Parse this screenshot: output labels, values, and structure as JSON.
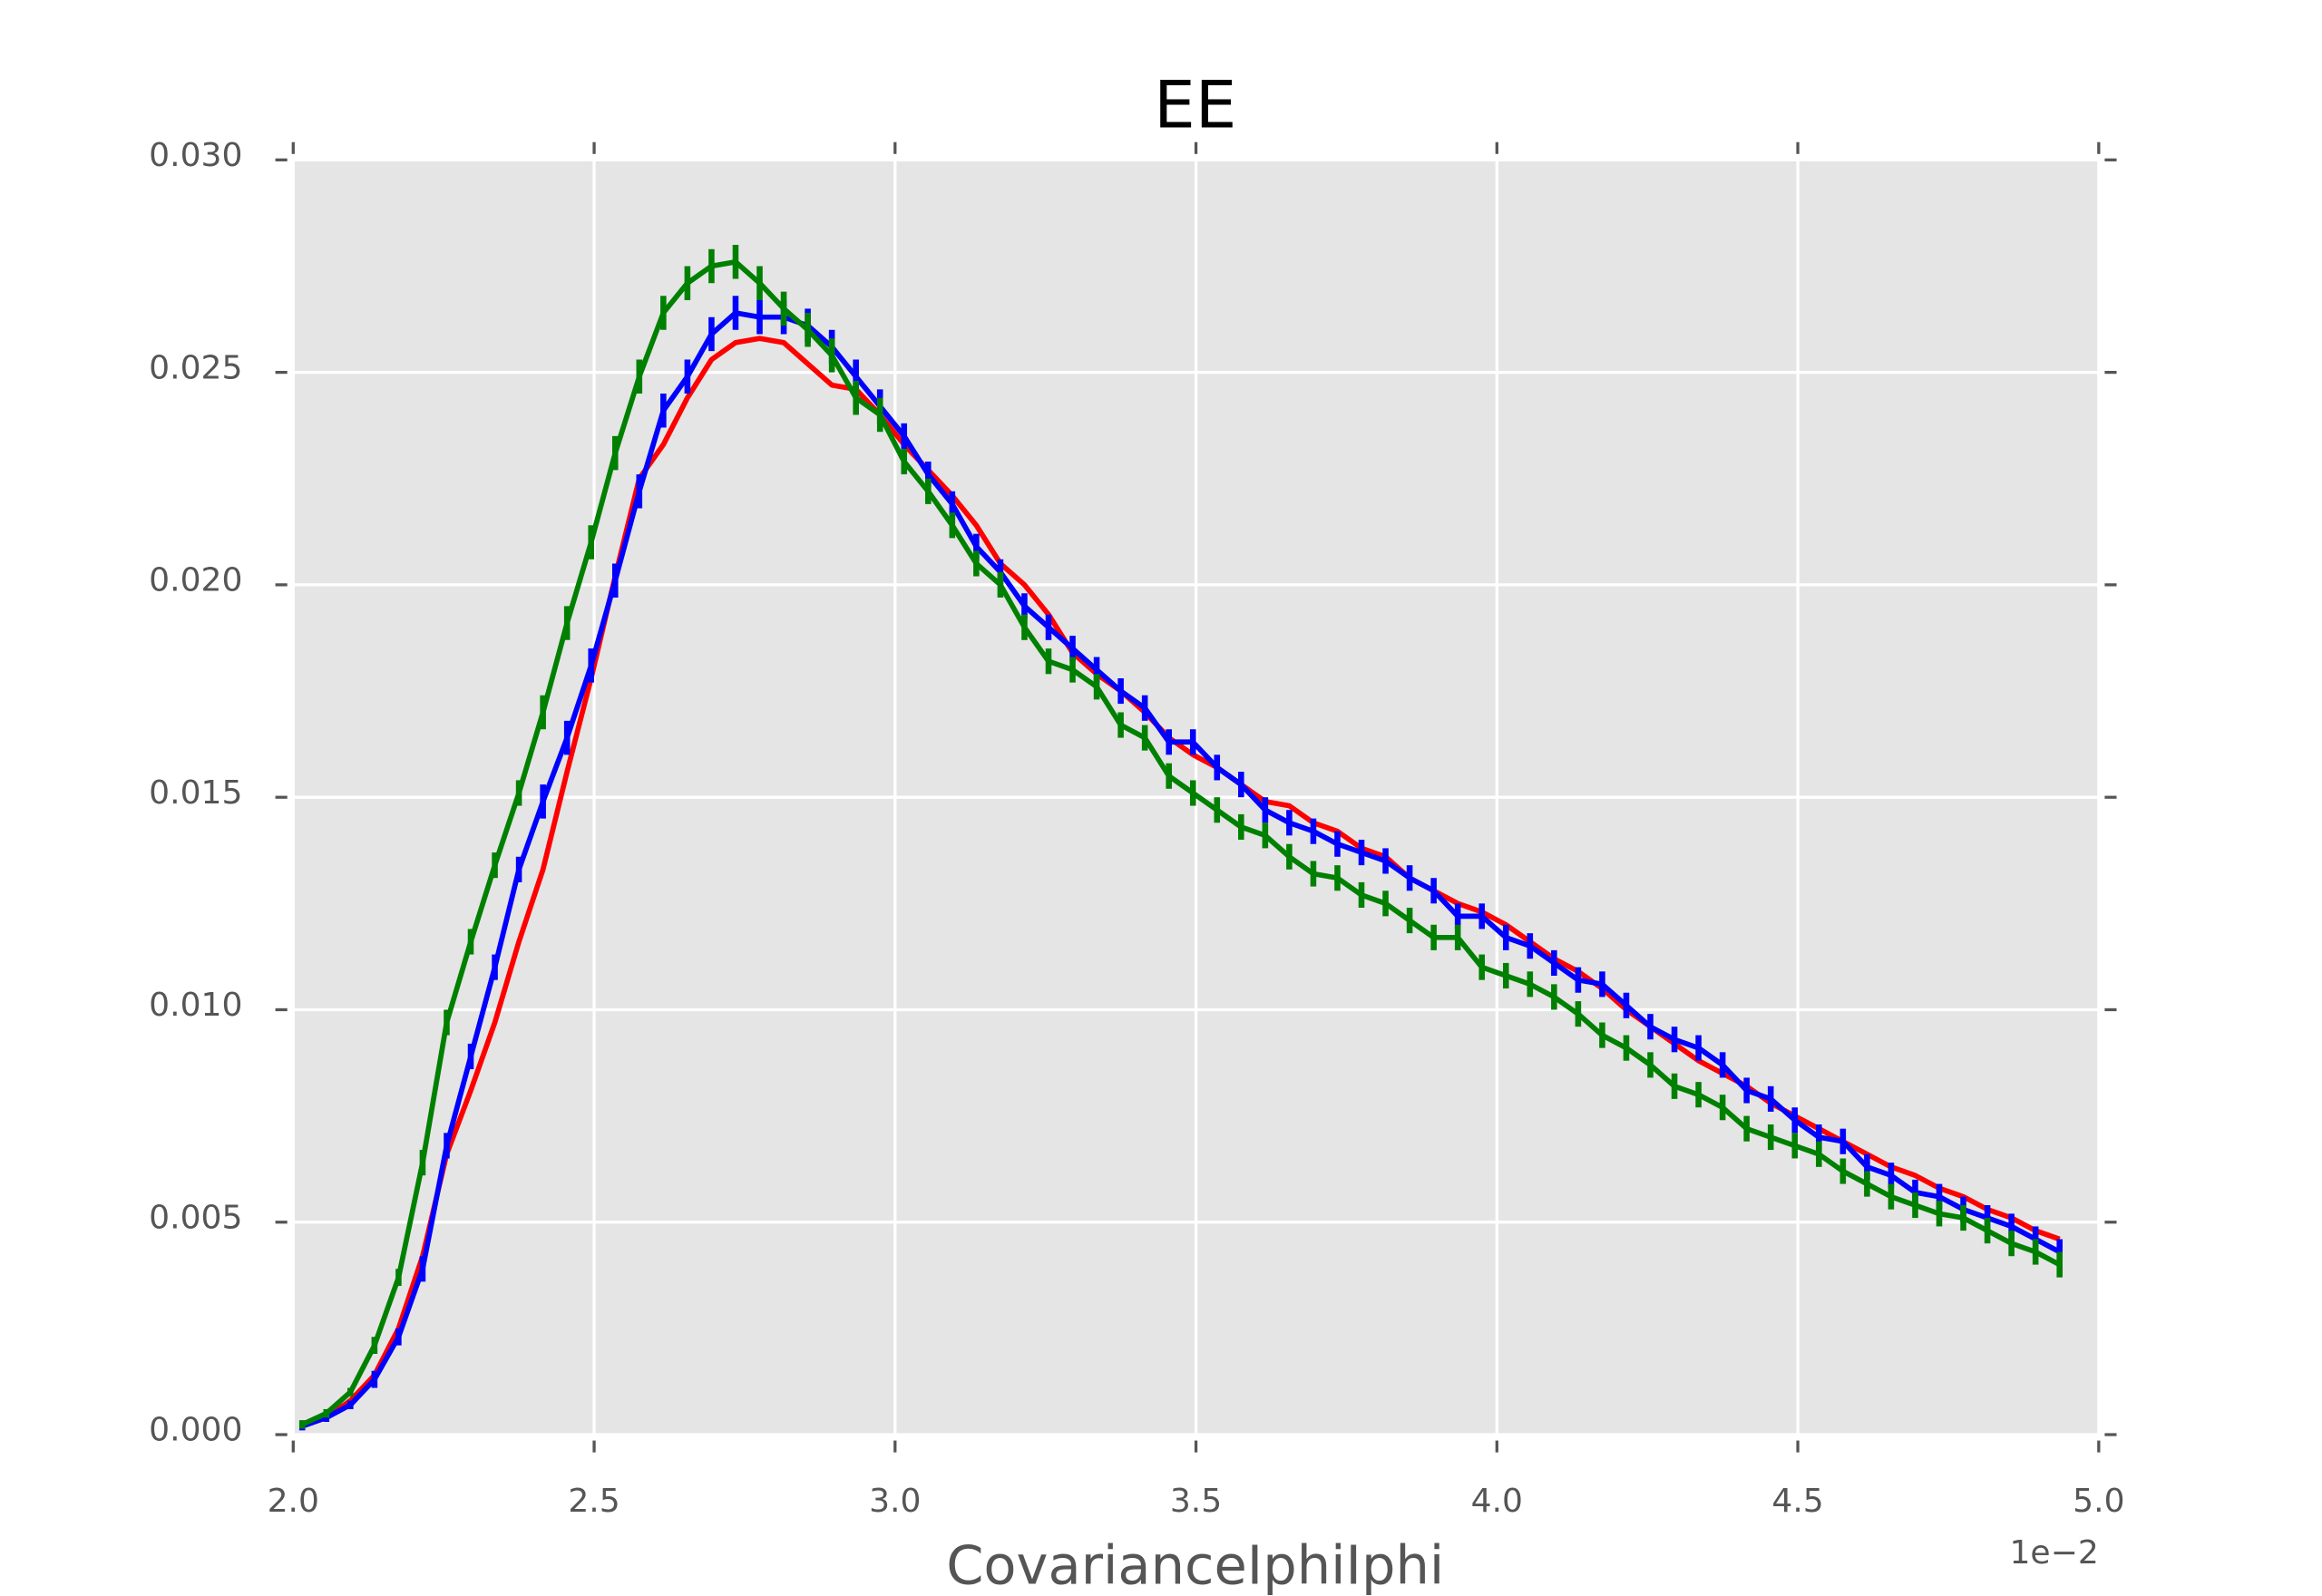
{
  "chart_data": {
    "type": "line",
    "title": "EE",
    "x_label": "CovarianceIphiIphi",
    "x_offset_label": "1e−2",
    "x": [
      2.015,
      2.055,
      2.095,
      2.135,
      2.175,
      2.215,
      2.255,
      2.295,
      2.335,
      2.375,
      2.415,
      2.455,
      2.495,
      2.535,
      2.575,
      2.615,
      2.655,
      2.695,
      2.735,
      2.775,
      2.815,
      2.855,
      2.895,
      2.935,
      2.975,
      3.015,
      3.055,
      3.095,
      3.135,
      3.175,
      3.215,
      3.255,
      3.295,
      3.335,
      3.375,
      3.415,
      3.455,
      3.495,
      3.535,
      3.575,
      3.615,
      3.655,
      3.695,
      3.735,
      3.775,
      3.815,
      3.855,
      3.895,
      3.935,
      3.975,
      4.015,
      4.055,
      4.095,
      4.135,
      4.175,
      4.215,
      4.255,
      4.295,
      4.335,
      4.375,
      4.415,
      4.455,
      4.495,
      4.535,
      4.575,
      4.615,
      4.655,
      4.695,
      4.735,
      4.775,
      4.815,
      4.855,
      4.895,
      4.935
    ],
    "series": [
      {
        "color": "#ff0000",
        "values": [
          0.0002,
          0.0004,
          0.0008,
          0.0014,
          0.0025,
          0.0042,
          0.0066,
          0.0081,
          0.0097,
          0.0116,
          0.0133,
          0.0156,
          0.0178,
          0.0202,
          0.0225,
          0.0233,
          0.0244,
          0.0253,
          0.0257,
          0.0258,
          0.0257,
          0.0252,
          0.0247,
          0.0246,
          0.024,
          0.0233,
          0.0227,
          0.0221,
          0.0214,
          0.0205,
          0.02,
          0.0193,
          0.0184,
          0.0179,
          0.0175,
          0.017,
          0.0164,
          0.016,
          0.0157,
          0.0153,
          0.0149,
          0.0148,
          0.0144,
          0.0142,
          0.0138,
          0.0136,
          0.0131,
          0.0128,
          0.0125,
          0.0123,
          0.012,
          0.0116,
          0.0112,
          0.0109,
          0.0105,
          0.01,
          0.0096,
          0.0092,
          0.0088,
          0.0085,
          0.0082,
          0.0078,
          0.0075,
          0.0072,
          0.0069,
          0.0066,
          0.0063,
          0.0061,
          0.0058,
          0.0056,
          0.0053,
          0.0051,
          0.0048,
          0.0046
        ]
      },
      {
        "color": "#0000ff",
        "values": [
          0.0002,
          0.0004,
          0.0007,
          0.0013,
          0.0023,
          0.0039,
          0.0068,
          0.0089,
          0.011,
          0.0133,
          0.0149,
          0.0164,
          0.0181,
          0.0201,
          0.0222,
          0.0241,
          0.0249,
          0.0259,
          0.0264,
          0.0263,
          0.0263,
          0.0261,
          0.0256,
          0.0249,
          0.0242,
          0.0235,
          0.0226,
          0.0219,
          0.0209,
          0.0203,
          0.0195,
          0.019,
          0.0185,
          0.018,
          0.0175,
          0.0171,
          0.0163,
          0.0163,
          0.0157,
          0.0153,
          0.0147,
          0.0144,
          0.0142,
          0.0139,
          0.0137,
          0.0135,
          0.0131,
          0.0128,
          0.0122,
          0.0122,
          0.0117,
          0.0115,
          0.0111,
          0.0107,
          0.0106,
          0.0101,
          0.0096,
          0.0093,
          0.0091,
          0.0087,
          0.0081,
          0.0079,
          0.0074,
          0.007,
          0.0069,
          0.0063,
          0.0061,
          0.0057,
          0.0056,
          0.0053,
          0.0051,
          0.0049,
          0.0046,
          0.0043
        ],
        "errors": [
          0.0001,
          0.0001,
          0.0001,
          0.0002,
          0.0002,
          0.0003,
          0.0003,
          0.0003,
          0.0003,
          0.0003,
          0.0004,
          0.0004,
          0.0004,
          0.0004,
          0.0004,
          0.0004,
          0.0004,
          0.0004,
          0.0004,
          0.0004,
          0.0004,
          0.0004,
          0.0004,
          0.0004,
          0.0004,
          0.0003,
          0.0003,
          0.0003,
          0.0003,
          0.0003,
          0.0003,
          0.0003,
          0.0003,
          0.0003,
          0.0003,
          0.0003,
          0.0003,
          0.0003,
          0.0003,
          0.0003,
          0.0003,
          0.0003,
          0.0003,
          0.0003,
          0.0003,
          0.0003,
          0.0003,
          0.0003,
          0.0003,
          0.0003,
          0.0003,
          0.0003,
          0.0003,
          0.0003,
          0.0003,
          0.0003,
          0.0003,
          0.0003,
          0.0003,
          0.0003,
          0.0003,
          0.0003,
          0.0003,
          0.0003,
          0.0003,
          0.0003,
          0.0003,
          0.0003,
          0.0003,
          0.0003,
          0.0003,
          0.0003,
          0.0003,
          0.0003
        ]
      },
      {
        "color": "#008000",
        "values": [
          0.00024,
          0.0005,
          0.001,
          0.0021,
          0.0037,
          0.0064,
          0.0097,
          0.0116,
          0.0134,
          0.0151,
          0.017,
          0.0191,
          0.021,
          0.0231,
          0.0249,
          0.0264,
          0.0271,
          0.0275,
          0.0276,
          0.0271,
          0.0265,
          0.026,
          0.0254,
          0.0244,
          0.024,
          0.0229,
          0.0222,
          0.0214,
          0.0205,
          0.02,
          0.019,
          0.0182,
          0.018,
          0.0176,
          0.0167,
          0.0164,
          0.0155,
          0.0151,
          0.0147,
          0.0143,
          0.0141,
          0.0136,
          0.0132,
          0.0131,
          0.0127,
          0.0125,
          0.0121,
          0.0117,
          0.0117,
          0.011,
          0.0108,
          0.0106,
          0.0103,
          0.0099,
          0.0094,
          0.0091,
          0.0087,
          0.0082,
          0.008,
          0.0077,
          0.0072,
          0.007,
          0.0068,
          0.0066,
          0.0062,
          0.0059,
          0.0056,
          0.0054,
          0.0052,
          0.0051,
          0.0048,
          0.0045,
          0.0043,
          0.004
        ],
        "errors": [
          0.0001,
          0.0001,
          0.0001,
          0.0002,
          0.0002,
          0.0003,
          0.0003,
          0.0003,
          0.0003,
          0.0003,
          0.0004,
          0.0004,
          0.0004,
          0.0004,
          0.0004,
          0.0004,
          0.0004,
          0.0004,
          0.0004,
          0.0004,
          0.0004,
          0.0004,
          0.0004,
          0.0004,
          0.0004,
          0.0003,
          0.0003,
          0.0003,
          0.0003,
          0.0003,
          0.0003,
          0.0003,
          0.0003,
          0.0003,
          0.0003,
          0.0003,
          0.0003,
          0.0003,
          0.0003,
          0.0003,
          0.0003,
          0.0003,
          0.0003,
          0.0003,
          0.0003,
          0.0003,
          0.0003,
          0.0003,
          0.0003,
          0.0003,
          0.0003,
          0.0003,
          0.0003,
          0.0003,
          0.0003,
          0.0003,
          0.0003,
          0.0003,
          0.0003,
          0.0003,
          0.0003,
          0.0003,
          0.0003,
          0.0003,
          0.0003,
          0.0003,
          0.0003,
          0.0003,
          0.0003,
          0.0003,
          0.0003,
          0.0003,
          0.0003,
          0.0003
        ]
      }
    ],
    "xlim": [
      2.0,
      5.0
    ],
    "xticks": [
      {
        "value": 2.0,
        "label": "2.0"
      },
      {
        "value": 2.5,
        "label": "2.5"
      },
      {
        "value": 3.0,
        "label": "3.0"
      },
      {
        "value": 3.5,
        "label": "3.5"
      },
      {
        "value": 4.0,
        "label": "4.0"
      },
      {
        "value": 4.5,
        "label": "4.5"
      },
      {
        "value": 5.0,
        "label": "5.0"
      }
    ],
    "ylim": [
      0,
      0.03
    ],
    "yticks": [
      {
        "value": 0,
        "label": "0.000"
      },
      {
        "value": 0.005,
        "label": "0.005"
      },
      {
        "value": 0.01,
        "label": "0.010"
      },
      {
        "value": 0.015,
        "label": "0.015"
      },
      {
        "value": 0.02,
        "label": "0.020"
      },
      {
        "value": 0.025,
        "label": "0.025"
      },
      {
        "value": 0.03,
        "label": "0.030"
      }
    ],
    "grid": true
  }
}
